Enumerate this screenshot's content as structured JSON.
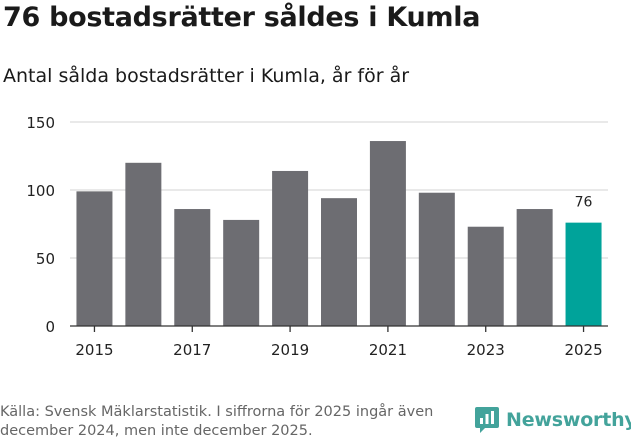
{
  "title": "76 bostadsrätter såldes i Kumla",
  "subtitle": "Antal sålda bostadsrätter i Kumla, år för år",
  "footer": {
    "source_line1": "Källa: Svensk Mäklarstatistik. I siffrorna för 2025 ingår även",
    "source_line2": "december 2024, men inte december 2025."
  },
  "brand": {
    "name": "Newsworthy",
    "icon": "newsworthy-logo-icon"
  },
  "colors": {
    "bar": "#6d6d72",
    "highlight": "#00a39a",
    "grid": "#dcdcdc",
    "axis": "#333333",
    "brand": "#43a39b"
  },
  "chart_data": {
    "type": "bar",
    "categories": [
      "2015",
      "2016",
      "2017",
      "2018",
      "2019",
      "2020",
      "2021",
      "2022",
      "2023",
      "2024",
      "2025"
    ],
    "values": [
      99,
      120,
      86,
      78,
      114,
      94,
      136,
      98,
      73,
      86,
      76
    ],
    "x_tick_labels": [
      "2015",
      "",
      "2017",
      "",
      "2019",
      "",
      "2021",
      "",
      "2023",
      "",
      "2025"
    ],
    "y_ticks": [
      "0",
      "50",
      "100",
      "150"
    ],
    "ylim": [
      0,
      150
    ],
    "highlight_index": 10,
    "data_labels": [
      {
        "index": 10,
        "text": "76"
      }
    ],
    "grid": true,
    "legend": "none",
    "xlabel": "",
    "ylabel": ""
  }
}
